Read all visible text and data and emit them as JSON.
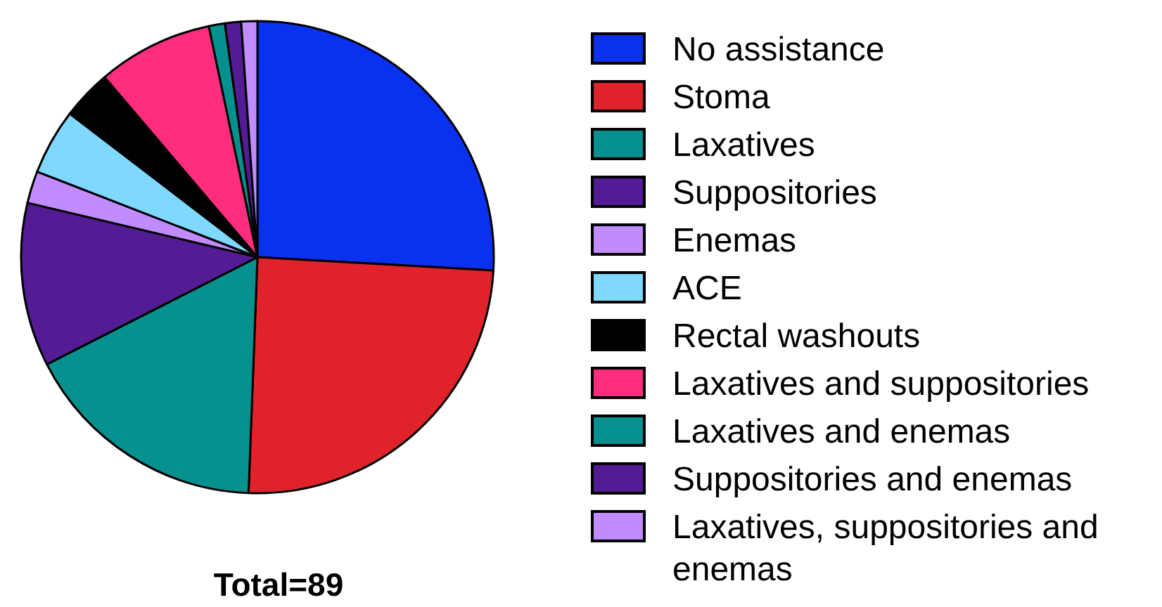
{
  "chart_data": {
    "type": "pie",
    "annotations": [
      "Total=89"
    ],
    "categories": [
      "No assistance",
      "Stoma",
      "Laxatives",
      "Suppositories",
      "Enemas",
      "ACE",
      "Rectal washouts",
      "Laxatives and suppositories",
      "Laxatives and enemas",
      "Suppositories and enemas",
      "Laxatives, suppositories and enemas"
    ],
    "values": [
      25.9,
      24.7,
      16.9,
      11.2,
      2.2,
      4.5,
      3.4,
      7.9,
      1.1,
      1.1,
      1.1
    ],
    "colors": [
      "#0a30f0",
      "#e0232a",
      "#06918f",
      "#531c94",
      "#c08cff",
      "#7fd8ff",
      "#000000",
      "#ff2d7e",
      "#06918f",
      "#531c94",
      "#c08cff"
    ],
    "legend": "right"
  }
}
